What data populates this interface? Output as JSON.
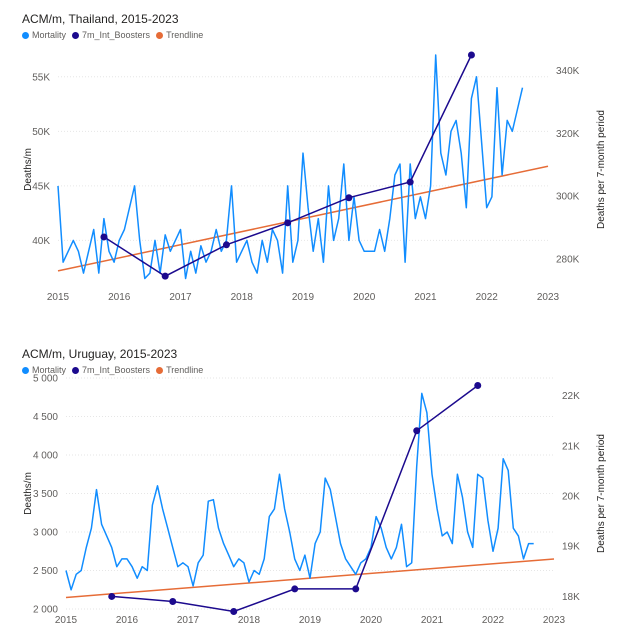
{
  "chart_data": [
    {
      "type": "line",
      "title": "ACM/m, Thailand, 2015-2023",
      "legend": [
        "Mortality",
        "7m_Int_Boosters",
        "Trendline"
      ],
      "legend_placement": "top-left",
      "colors": {
        "Mortality": "#118dff",
        "7m_Int_Boosters": "#1c0a8e",
        "Trendline": "#e66c37"
      },
      "xlabel": "",
      "ylabel": "Deaths/m",
      "y2label": "Deaths per 7-month period",
      "xlim": [
        2015,
        2023
      ],
      "ylim": [
        36000,
        57000
      ],
      "y2lim": [
        272000,
        345000
      ],
      "x_ticks": [
        "2015",
        "2016",
        "2017",
        "2018",
        "2019",
        "2020",
        "2021",
        "2022",
        "2023"
      ],
      "y_ticks": [
        {
          "v": 40000,
          "label": "40K"
        },
        {
          "v": 45000,
          "label": "45K"
        },
        {
          "v": 50000,
          "label": "50K"
        },
        {
          "v": 55000,
          "label": "55K"
        }
      ],
      "y2_ticks": [
        {
          "v": 280000,
          "label": "280K"
        },
        {
          "v": 300000,
          "label": "300K"
        },
        {
          "v": 320000,
          "label": "320K"
        },
        {
          "v": 340000,
          "label": "340K"
        }
      ],
      "grid": "horizontal",
      "series": [
        {
          "name": "Mortality",
          "axis": "left",
          "start": 2015,
          "step": 0.0833333,
          "values": [
            45000,
            38000,
            39000,
            40000,
            39000,
            37000,
            39000,
            41000,
            37000,
            42000,
            39000,
            38000,
            40000,
            41000,
            43000,
            45000,
            40000,
            36500,
            37000,
            40000,
            37000,
            40500,
            39000,
            40000,
            41000,
            36500,
            39000,
            37000,
            39500,
            38000,
            39000,
            41000,
            39000,
            40000,
            45000,
            38000,
            39000,
            40000,
            38000,
            37000,
            40000,
            38000,
            41000,
            40000,
            37000,
            45000,
            38000,
            40000,
            48000,
            43000,
            39000,
            42000,
            38000,
            45000,
            40000,
            42000,
            47000,
            40000,
            44000,
            40000,
            39000,
            39000,
            39000,
            41000,
            39000,
            42000,
            46000,
            47000,
            38000,
            47000,
            42000,
            44000,
            42000,
            45000,
            57000,
            48000,
            46000,
            50000,
            51000,
            48000,
            43000,
            53000,
            55000,
            49000,
            43000,
            44000,
            54000,
            46000,
            51000,
            50000,
            52000,
            54000
          ]
        },
        {
          "name": "7m_Int_Boosters",
          "axis": "right",
          "x": [
            2015.75,
            2016.75,
            2017.75,
            2018.75,
            2019.75,
            2020.75,
            2021.75
          ],
          "values": [
            287000,
            274500,
            284500,
            291500,
            299500,
            304500,
            345000
          ]
        },
        {
          "name": "Trendline",
          "axis": "left",
          "x": [
            2015,
            2023
          ],
          "values": [
            37200,
            46800
          ]
        }
      ]
    },
    {
      "type": "line",
      "title": "ACM/m, Uruguay, 2015-2023",
      "legend": [
        "Mortality",
        "7m_Int_Boosters",
        "Trendline"
      ],
      "legend_placement": "top-left",
      "colors": {
        "Mortality": "#118dff",
        "7m_Int_Boosters": "#1c0a8e",
        "Trendline": "#e66c37"
      },
      "xlabel": "",
      "ylabel": "Deaths/m",
      "y2label": "Deaths per 7-month period",
      "xlim": [
        2015,
        2023
      ],
      "ylim": [
        2000,
        5000
      ],
      "y2lim": [
        17750,
        22350
      ],
      "x_ticks": [
        "2015",
        "2016",
        "2017",
        "2018",
        "2019",
        "2020",
        "2021",
        "2022",
        "2023"
      ],
      "y_ticks": [
        {
          "v": 2000,
          "label": "2 000"
        },
        {
          "v": 2500,
          "label": "2 500"
        },
        {
          "v": 3000,
          "label": "3 000"
        },
        {
          "v": 3500,
          "label": "3 500"
        },
        {
          "v": 4000,
          "label": "4 000"
        },
        {
          "v": 4500,
          "label": "4 500"
        },
        {
          "v": 5000,
          "label": "5 000"
        }
      ],
      "y2_ticks": [
        {
          "v": 18000,
          "label": "18K"
        },
        {
          "v": 19000,
          "label": "19K"
        },
        {
          "v": 20000,
          "label": "20K"
        },
        {
          "v": 21000,
          "label": "21K"
        },
        {
          "v": 22000,
          "label": "22K"
        }
      ],
      "grid": "horizontal",
      "series": [
        {
          "name": "Mortality",
          "axis": "left",
          "start": 2015,
          "step": 0.0833333,
          "values": [
            2500,
            2250,
            2450,
            2500,
            2800,
            3050,
            3550,
            3100,
            2950,
            2800,
            2550,
            2650,
            2650,
            2550,
            2400,
            2550,
            2500,
            3350,
            3600,
            3300,
            3050,
            2800,
            2550,
            2600,
            2550,
            2300,
            2600,
            2700,
            3400,
            3420,
            3050,
            2850,
            2700,
            2550,
            2650,
            2600,
            2350,
            2500,
            2450,
            2650,
            3200,
            3300,
            3750,
            3300,
            3000,
            2650,
            2500,
            2700,
            2400,
            2850,
            3000,
            3700,
            3550,
            3200,
            2850,
            2650,
            2550,
            2450,
            2600,
            2650,
            2800,
            3200,
            3050,
            2800,
            2650,
            2800,
            3100,
            2550,
            2600,
            3850,
            4800,
            4550,
            3750,
            3300,
            2950,
            3000,
            2850,
            3750,
            3450,
            3000,
            2800,
            3750,
            3700,
            3150,
            2750,
            3050,
            3950,
            3800,
            3050,
            2950,
            2650,
            2850,
            2850
          ]
        },
        {
          "name": "7m_Int_Boosters",
          "axis": "right",
          "x": [
            2015.75,
            2016.75,
            2017.75,
            2018.75,
            2019.75,
            2020.75,
            2021.75
          ],
          "values": [
            18000,
            17900,
            17700,
            18150,
            18150,
            21300,
            22200
          ]
        },
        {
          "name": "Trendline",
          "axis": "left",
          "x": [
            2015,
            2023
          ],
          "values": [
            2150,
            2650
          ]
        }
      ]
    }
  ]
}
